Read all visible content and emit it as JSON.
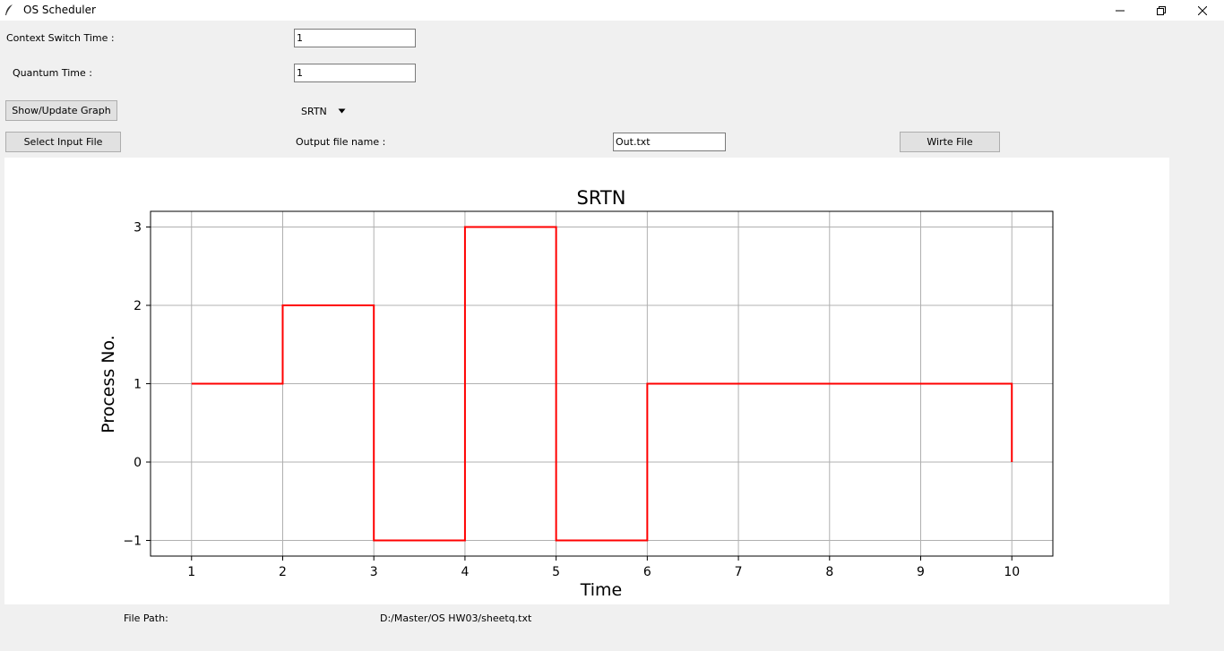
{
  "window": {
    "title": "OS Scheduler"
  },
  "form": {
    "context_switch_label": "Context Switch Time :",
    "context_switch_value": "1",
    "quantum_label": "Quantum Time :",
    "quantum_value": "1",
    "show_graph_button": "Show/Update Graph",
    "algorithm_selected": "SRTN",
    "select_input_button": "Select Input File",
    "output_name_label": "Output file name :",
    "output_name_value": "Out.txt",
    "write_file_button": "Wirte File"
  },
  "footer": {
    "file_path_label": "File Path:",
    "file_path_value": "D:/Master/OS HW03/sheetq.txt"
  },
  "chart_data": {
    "type": "line",
    "step": true,
    "title": "SRTN",
    "xlabel": "Time",
    "ylabel": "Process No.",
    "xlim": [
      0.55,
      10.45
    ],
    "ylim": [
      -1.2,
      3.2
    ],
    "xticks": [
      1,
      2,
      3,
      4,
      5,
      6,
      7,
      8,
      9,
      10
    ],
    "yticks": [
      -1,
      0,
      1,
      2,
      3
    ],
    "ytick_labels": [
      "−1",
      "0",
      "1",
      "2",
      "3"
    ],
    "grid": true,
    "series": [
      {
        "color": "#ff0000",
        "points": [
          [
            1,
            1
          ],
          [
            2,
            1
          ],
          [
            2,
            2
          ],
          [
            3,
            2
          ],
          [
            3,
            -1
          ],
          [
            4,
            -1
          ],
          [
            4,
            3
          ],
          [
            5,
            3
          ],
          [
            5,
            -1
          ],
          [
            6,
            -1
          ],
          [
            6,
            1
          ],
          [
            10,
            1
          ],
          [
            10,
            0
          ]
        ]
      }
    ]
  }
}
